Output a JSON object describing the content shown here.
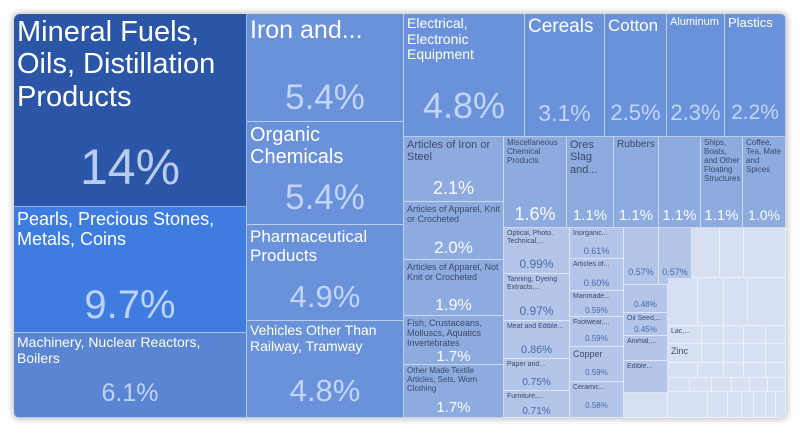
{
  "chart_data": {
    "type": "treemap",
    "title": "",
    "colors": {
      "dark": "#2b56a8",
      "bright": "#3e7ddf",
      "mid": "#5a85d3",
      "base": "#6a92da",
      "light": "#8eabe0",
      "pale": "#b3c6ea",
      "faint": "#d6e0f2",
      "text_light": "#ffffff",
      "text_dark": "#3a4a6a"
    },
    "items": [
      {
        "name": "Mineral Fuels, Oils, Distillation Products",
        "label": "Mineral Fuels, Oils, Distillation Products",
        "value_label": "14%",
        "value": 14
      },
      {
        "name": "Pearls, Precious Stones, Metals, Coins",
        "label": "Pearls, Precious Stones, Metals, Coins",
        "value_label": "9.7%",
        "value": 9.7
      },
      {
        "name": "Machinery, Nuclear Reactors, Boilers",
        "label": "Machinery, Nuclear Reactors, Boilers",
        "value_label": "6.1%",
        "value": 6.1
      },
      {
        "name": "Iron and...",
        "label": "Iron and...",
        "value_label": "5.4%",
        "value": 5.4
      },
      {
        "name": "Organic Chemicals",
        "label": "Organic Chemicals",
        "value_label": "5.4%",
        "value": 5.4
      },
      {
        "name": "Pharmaceutical Products",
        "label": "Pharmaceutical Products",
        "value_label": "4.9%",
        "value": 4.9
      },
      {
        "name": "Vehicles Other Than Railway, Tramway",
        "label": "Vehicles Other Than Railway, Tramway",
        "value_label": "4.8%",
        "value": 4.8
      },
      {
        "name": "Electrical, Electronic Equipment",
        "label": "Electrical, Electronic Equipment",
        "value_label": "4.8%",
        "value": 4.8
      },
      {
        "name": "Cereals",
        "label": "Cereals",
        "value_label": "3.1%",
        "value": 3.1
      },
      {
        "name": "Cotton",
        "label": "Cotton",
        "value_label": "2.5%",
        "value": 2.5
      },
      {
        "name": "Aluminum",
        "label": "Aluminum",
        "value_label": "2.3%",
        "value": 2.3
      },
      {
        "name": "Plastics",
        "label": "Plastics",
        "value_label": "2.2%",
        "value": 2.2
      },
      {
        "name": "Articles of Iron or Steel",
        "label": "Articles of Iron or Steel",
        "value_label": "2.1%",
        "value": 2.1
      },
      {
        "name": "Articles of Apparel, Knit or Crocheted",
        "label": "Articles of Apparel, Knit or Crocheted",
        "value_label": "2.0%",
        "value": 2.0
      },
      {
        "name": "Articles of Apparel, Not Knit or Crocheted",
        "label": "Articles of Apparel, Not Knit or Crocheted",
        "value_label": "1.9%",
        "value": 1.9
      },
      {
        "name": "Fish, Crustaceans, Molluscs, Aquatics Invertebrates",
        "label": "Fish, Crustaceans, Molluscs, Aquatics Invertebrates",
        "value_label": "1.7%",
        "value": 1.7
      },
      {
        "name": "Other Made Textile Articles, Sets, Worn Clothing",
        "label": "Other Made Textile Articles, Sets, Worn Clothing",
        "value_label": "1.7%",
        "value": 1.7
      },
      {
        "name": "Miscellaneous Chemical Products",
        "label": "Miscellaneous Chemical Products",
        "value_label": "1.6%",
        "value": 1.6
      },
      {
        "name": "Ores Slag and...",
        "label": "Ores Slag and...",
        "value_label": "1.1%",
        "value": 1.1
      },
      {
        "name": "Rubbers",
        "label": "Rubbers",
        "value_label": "1.1%",
        "value": 1.1
      },
      {
        "name": "Unlabeled (1.1%)",
        "label": "",
        "value_label": "1.1%",
        "value": 1.1
      },
      {
        "name": "Ships, Boats, and Other Floating Structures",
        "label": "Ships, Boats, and Other Floating Structures",
        "value_label": "1.1%",
        "value": 1.1
      },
      {
        "name": "Coffee, Tea, Mate and Spices",
        "label": "Coffee, Tea, Mate and Spices",
        "value_label": "1.0%",
        "value": 1.0
      },
      {
        "name": "Optical, Photo, Technical,...",
        "label": "Optical, Photo, Technical,...",
        "value_label": "0.99%",
        "value": 0.99
      },
      {
        "name": "Tanning, Dyeing Extracts,...",
        "label": "Tanning, Dyeing Extracts,...",
        "value_label": "0.97%",
        "value": 0.97
      },
      {
        "name": "Meat and Edible...",
        "label": "Meat and Edible...",
        "value_label": "0.86%",
        "value": 0.86
      },
      {
        "name": "Paper and...",
        "label": "Paper and...",
        "value_label": "0.75%",
        "value": 0.75
      },
      {
        "name": "Furniture,...",
        "label": "Furniture,...",
        "value_label": "0.71%",
        "value": 0.71
      },
      {
        "name": "Inorganic...",
        "label": "Inorganic...",
        "value_label": "0.61%",
        "value": 0.61
      },
      {
        "name": "Articles of...",
        "label": "Articles of...",
        "value_label": "0.60%",
        "value": 0.6
      },
      {
        "name": "Manmade...",
        "label": "Manmade...",
        "value_label": "0.59%",
        "value": 0.59
      },
      {
        "name": "Footwear,...",
        "label": "Footwear,...",
        "value_label": "0.59%",
        "value": 0.59
      },
      {
        "name": "Copper",
        "label": "Copper",
        "value_label": "0.59%",
        "value": 0.59
      },
      {
        "name": "Ceramic...",
        "label": "Ceramic...",
        "value_label": "0.58%",
        "value": 0.58
      },
      {
        "name": "Unlabeled (0.57%)",
        "label": "",
        "value_label": "0.57%",
        "value": 0.57
      },
      {
        "name": "Unlabeled (0.57%) b",
        "label": "",
        "value_label": "0.57%",
        "value": 0.57
      },
      {
        "name": "Unlabeled (0.48%)",
        "label": "",
        "value_label": "0.48%",
        "value": 0.48
      },
      {
        "name": "Oil Seed,...",
        "label": "Oil Seed,...",
        "value_label": "0.45%",
        "value": 0.45
      },
      {
        "name": "Animal,...",
        "label": "Animal,...",
        "value_label": "",
        "value": null
      },
      {
        "name": "Edible...",
        "label": "Edible...",
        "value_label": "",
        "value": null
      },
      {
        "name": "Lac,...",
        "label": "Lac,...",
        "value_label": "",
        "value": null
      },
      {
        "name": "Zinc",
        "label": "Zinc",
        "value_label": "",
        "value": null
      }
    ]
  }
}
